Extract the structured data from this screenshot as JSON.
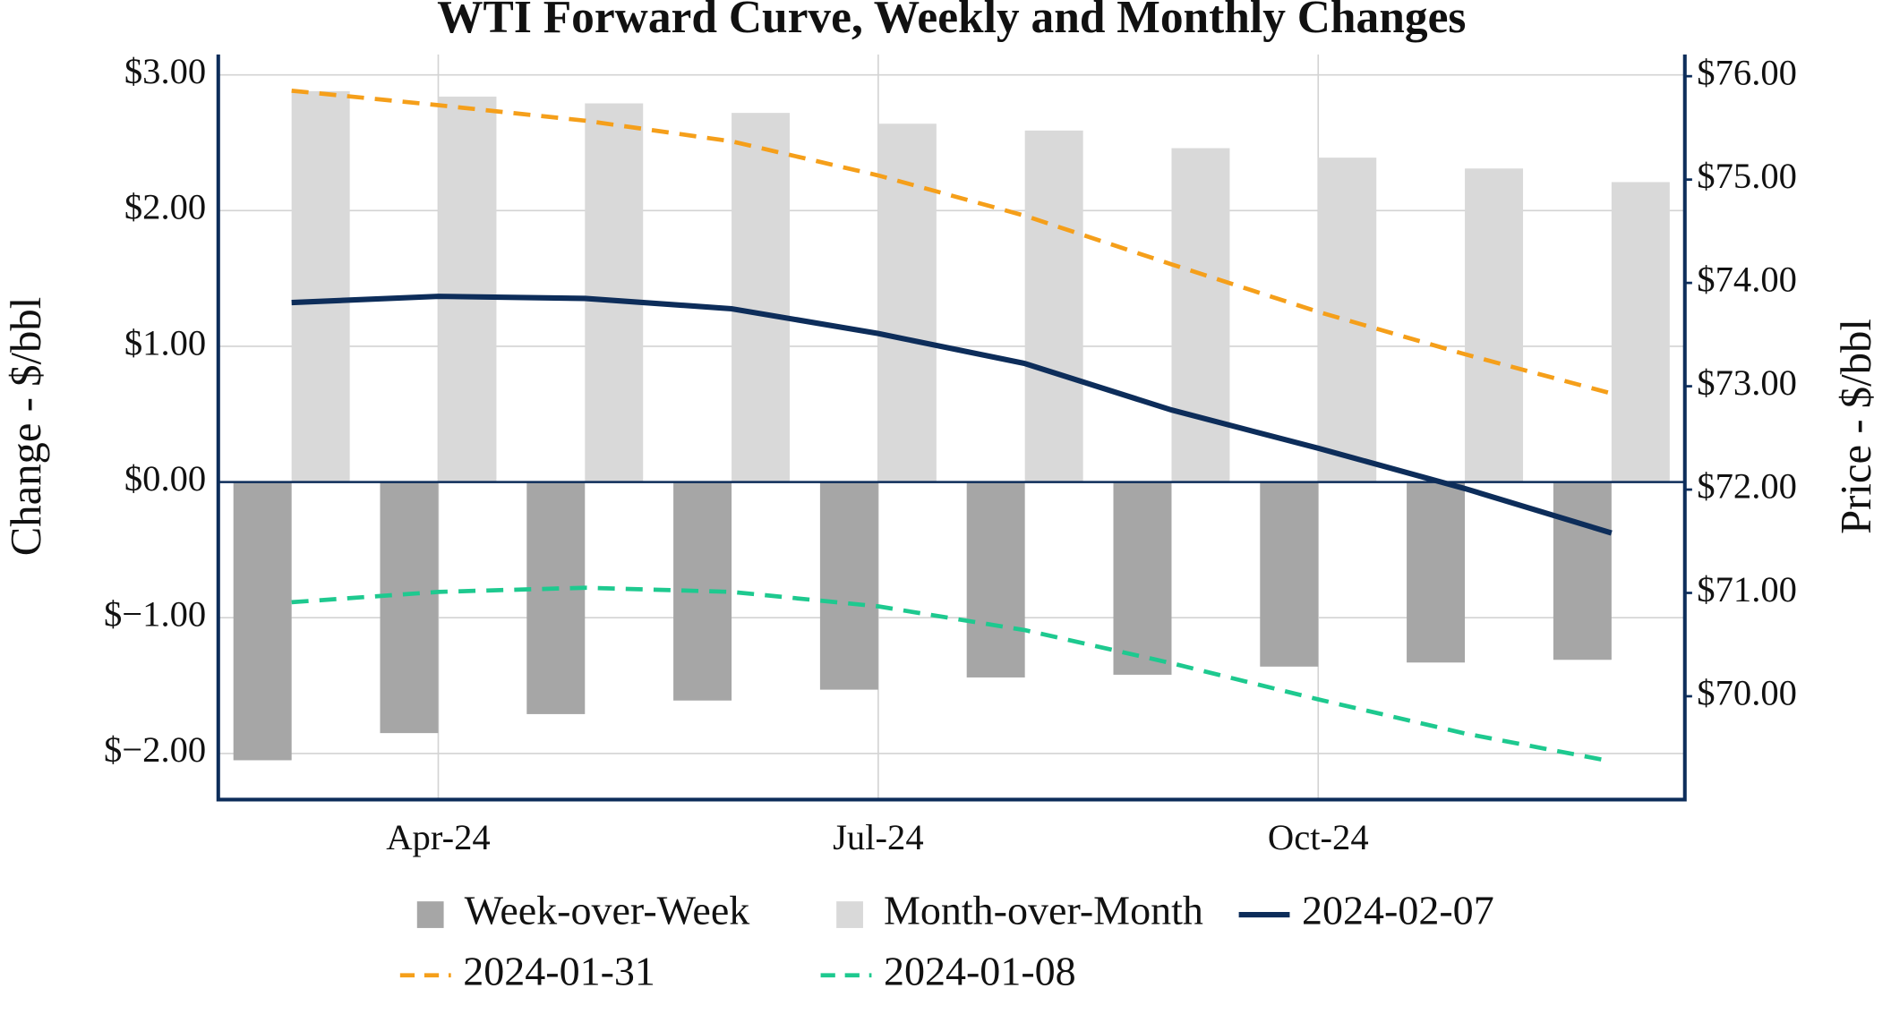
{
  "chart_data": {
    "type": "bar",
    "title": "WTI Forward Curve, Weekly and Monthly Changes",
    "y_label": "Change - $/bbl",
    "y2_label": "Price - $/bbl",
    "categories": [
      null,
      "Apr-24",
      null,
      null,
      "Jul-24",
      null,
      null,
      "Oct-24",
      null,
      null
    ],
    "ylim": [
      -2.34,
      3.15
    ],
    "yticks": [
      {
        "value": -2,
        "label": "$−2.00"
      },
      {
        "value": -1,
        "label": "$−1.00"
      },
      {
        "value": 0,
        "label": "$0.00"
      },
      {
        "value": 1,
        "label": "$1.00"
      },
      {
        "value": 2,
        "label": "$2.00"
      },
      {
        "value": 3,
        "label": "$3.00"
      }
    ],
    "y2lim": [
      69.0,
      76.21
    ],
    "y2ticks": [
      {
        "value": 70,
        "label": "$70.00"
      },
      {
        "value": 71,
        "label": "$71.00"
      },
      {
        "value": 72,
        "label": "$72.00"
      },
      {
        "value": 73,
        "label": "$73.00"
      },
      {
        "value": 74,
        "label": "$74.00"
      },
      {
        "value": 75,
        "label": "$75.00"
      },
      {
        "value": 76,
        "label": "$76.00"
      }
    ],
    "grid": true,
    "series": [
      {
        "name": "Week-over-Week",
        "type": "bar",
        "color": "#a6a6a6",
        "values": [
          -2.05,
          -1.85,
          -1.71,
          -1.61,
          -1.53,
          -1.44,
          -1.42,
          -1.36,
          -1.33,
          -1.31
        ]
      },
      {
        "name": "Month-over-Month",
        "type": "bar",
        "color": "#d9d9d9",
        "values": [
          2.88,
          2.84,
          2.79,
          2.72,
          2.64,
          2.59,
          2.46,
          2.39,
          2.31,
          2.21
        ]
      },
      {
        "name": "2024-02-07",
        "type": "line",
        "axis": "y2",
        "color": "#0d2d5a",
        "dashed": false,
        "values": [
          73.81,
          73.87,
          73.85,
          73.75,
          73.51,
          73.22,
          72.77,
          72.4,
          72.01,
          71.58
        ]
      },
      {
        "name": "2024-01-31",
        "type": "line",
        "axis": "y2",
        "color": "#f59f1a",
        "dashed": true,
        "values": [
          75.86,
          75.72,
          75.57,
          75.37,
          75.04,
          74.65,
          74.18,
          73.72,
          73.31,
          72.93
        ]
      },
      {
        "name": "2024-01-08",
        "type": "line",
        "axis": "y2",
        "color": "#1ec98f",
        "dashed": true,
        "values": [
          70.91,
          71.01,
          71.05,
          71.01,
          70.87,
          70.64,
          70.32,
          69.97,
          69.64,
          69.37
        ]
      }
    ]
  }
}
